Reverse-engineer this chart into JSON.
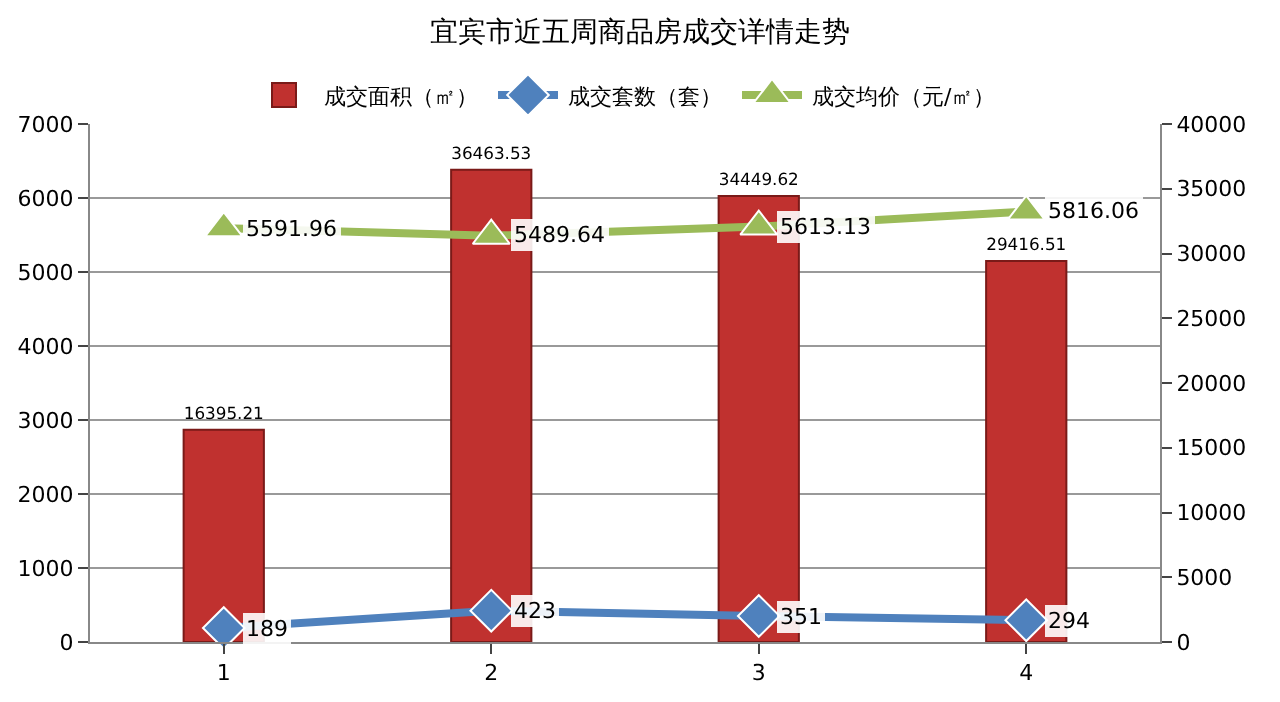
{
  "chart_data": {
    "type": "bar",
    "title": "宜宾市近五周商品房成交详情走势",
    "categories": [
      "1",
      "2",
      "3",
      "4"
    ],
    "series": [
      {
        "name": "成交面积（㎡）",
        "axis": "y2",
        "color": "#c0312f",
        "values": [
          16395.21,
          36463.53,
          34449.62,
          29416.51
        ]
      },
      {
        "name": "成交套数（套）",
        "type": "line",
        "color": "#4f81bd",
        "marker": "diamond",
        "values": [
          189,
          423,
          351,
          294
        ]
      },
      {
        "name": "成交均价（元/㎡）",
        "type": "line",
        "color": "#9bbb59",
        "marker": "triangle",
        "values": [
          5591.96,
          5489.64,
          5613.13,
          5816.06
        ]
      }
    ],
    "ylim": [
      0,
      7000
    ],
    "yticks": [
      0,
      1000,
      2000,
      3000,
      4000,
      5000,
      6000,
      7000
    ],
    "y2lim": [
      0,
      40000
    ],
    "y2ticks": [
      0,
      5000,
      10000,
      15000,
      20000,
      25000,
      30000,
      35000,
      40000
    ],
    "data_labels": true,
    "grid": "y",
    "legend": "top"
  }
}
